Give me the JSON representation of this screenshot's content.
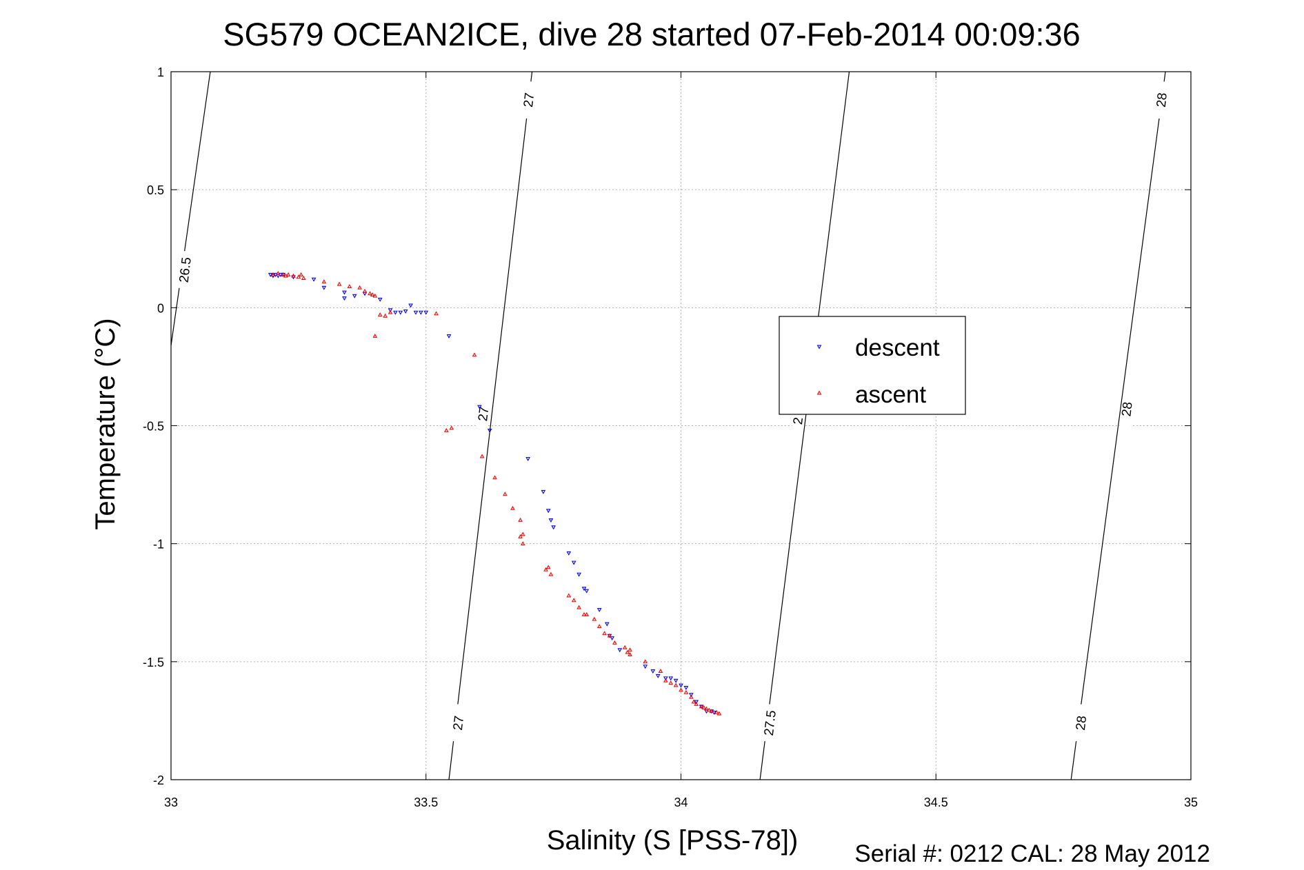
{
  "chart_data": {
    "type": "scatter",
    "title": "SG579 OCEAN2ICE, dive 28 started 07-Feb-2014 00:09:36",
    "xlabel": "Salinity (S [PSS-78])",
    "ylabel": "Temperature (°C)",
    "xlim": [
      33,
      35
    ],
    "ylim": [
      -2,
      1
    ],
    "xticks": [
      "33",
      "33.5",
      "34",
      "34.5",
      "35"
    ],
    "yticks": [
      "1",
      "0.5",
      "0",
      "-0.5",
      "-1",
      "-1.5",
      "-2"
    ],
    "grid": true,
    "legend_position": "center-right",
    "footer": "Serial #: 0212  CAL: 28 May 2012",
    "isopycnals": [
      {
        "label": "26.5",
        "points": [
          [
            33.0,
            -0.16
          ],
          [
            33.077,
            1.0
          ]
        ],
        "label_at": [
          33.028,
          0.16
        ]
      },
      {
        "label": "27",
        "points": [
          [
            33.545,
            -2.0
          ],
          [
            33.708,
            1.0
          ]
        ],
        "label_at": [
          33.564,
          -1.76
        ]
      },
      {
        "label": "27",
        "label_at": [
          33.613,
          -0.45
        ]
      },
      {
        "label": "27",
        "label_at": [
          33.702,
          0.88
        ]
      },
      {
        "label": "27.5",
        "points": [
          [
            34.155,
            -2.0
          ],
          [
            34.33,
            1.0
          ]
        ],
        "label_at": [
          34.175,
          -1.76
        ]
      },
      {
        "label": "2",
        "label_at": [
          34.23,
          -0.48
        ]
      },
      {
        "label": "28",
        "points": [
          [
            34.765,
            -2.0
          ],
          [
            34.95,
            1.0
          ]
        ],
        "label_at": [
          34.785,
          -1.76
        ]
      },
      {
        "label": "28",
        "label_at": [
          34.875,
          -0.43
        ]
      },
      {
        "label": "28",
        "label_at": [
          34.943,
          0.88
        ]
      }
    ],
    "series": [
      {
        "name": "descent",
        "color": "#0000ff",
        "marker": "triangle-down",
        "points": [
          [
            33.195,
            0.14
          ],
          [
            33.2,
            0.135
          ],
          [
            33.205,
            0.14
          ],
          [
            33.21,
            0.135
          ],
          [
            33.215,
            0.14
          ],
          [
            33.22,
            0.14
          ],
          [
            33.24,
            0.13
          ],
          [
            33.28,
            0.12
          ],
          [
            33.3,
            0.085
          ],
          [
            33.34,
            0.065
          ],
          [
            33.34,
            0.04
          ],
          [
            33.36,
            0.05
          ],
          [
            33.38,
            0.06
          ],
          [
            33.41,
            0.035
          ],
          [
            33.43,
            -0.01
          ],
          [
            33.44,
            -0.02
          ],
          [
            33.45,
            -0.02
          ],
          [
            33.46,
            -0.015
          ],
          [
            33.47,
            0.01
          ],
          [
            33.48,
            -0.02
          ],
          [
            33.49,
            -0.02
          ],
          [
            33.5,
            -0.02
          ],
          [
            33.545,
            -0.12
          ],
          [
            33.605,
            -0.42
          ],
          [
            33.625,
            -0.52
          ],
          [
            33.7,
            -0.64
          ],
          [
            33.73,
            -0.78
          ],
          [
            33.74,
            -0.86
          ],
          [
            33.745,
            -0.9
          ],
          [
            33.75,
            -0.93
          ],
          [
            33.78,
            -1.04
          ],
          [
            33.79,
            -1.08
          ],
          [
            33.8,
            -1.13
          ],
          [
            33.81,
            -1.19
          ],
          [
            33.815,
            -1.2
          ],
          [
            33.84,
            -1.28
          ],
          [
            33.855,
            -1.34
          ],
          [
            33.86,
            -1.39
          ],
          [
            33.865,
            -1.4
          ],
          [
            33.88,
            -1.45
          ],
          [
            33.93,
            -1.52
          ],
          [
            33.945,
            -1.54
          ],
          [
            33.955,
            -1.56
          ],
          [
            33.97,
            -1.57
          ],
          [
            33.98,
            -1.57
          ],
          [
            33.99,
            -1.58
          ],
          [
            34.0,
            -1.6
          ],
          [
            34.01,
            -1.61
          ],
          [
            34.02,
            -1.64
          ],
          [
            34.03,
            -1.67
          ],
          [
            34.04,
            -1.69
          ],
          [
            34.05,
            -1.71
          ],
          [
            34.06,
            -1.71
          ],
          [
            34.065,
            -1.715
          ]
        ]
      },
      {
        "name": "ascent",
        "color": "#ff0000",
        "marker": "triangle-up",
        "points": [
          [
            33.2,
            0.14
          ],
          [
            33.21,
            0.145
          ],
          [
            33.22,
            0.14
          ],
          [
            33.225,
            0.135
          ],
          [
            33.23,
            0.14
          ],
          [
            33.24,
            0.135
          ],
          [
            33.25,
            0.13
          ],
          [
            33.255,
            0.14
          ],
          [
            33.26,
            0.125
          ],
          [
            33.3,
            0.11
          ],
          [
            33.33,
            0.1
          ],
          [
            33.35,
            0.09
          ],
          [
            33.37,
            0.085
          ],
          [
            33.38,
            0.07
          ],
          [
            33.39,
            0.06
          ],
          [
            33.395,
            0.055
          ],
          [
            33.4,
            0.05
          ],
          [
            33.41,
            -0.03
          ],
          [
            33.42,
            -0.035
          ],
          [
            33.43,
            -0.02
          ],
          [
            33.4,
            -0.12
          ],
          [
            33.52,
            -0.025
          ],
          [
            33.595,
            -0.2
          ],
          [
            33.54,
            -0.52
          ],
          [
            33.55,
            -0.51
          ],
          [
            33.61,
            -0.63
          ],
          [
            33.635,
            -0.72
          ],
          [
            33.655,
            -0.79
          ],
          [
            33.67,
            -0.85
          ],
          [
            33.685,
            -0.9
          ],
          [
            33.69,
            -0.96
          ],
          [
            33.685,
            -0.97
          ],
          [
            33.69,
            -1.0
          ],
          [
            33.735,
            -1.11
          ],
          [
            33.74,
            -1.1
          ],
          [
            33.745,
            -1.13
          ],
          [
            33.78,
            -1.22
          ],
          [
            33.79,
            -1.24
          ],
          [
            33.8,
            -1.27
          ],
          [
            33.81,
            -1.3
          ],
          [
            33.815,
            -1.3
          ],
          [
            33.83,
            -1.32
          ],
          [
            33.84,
            -1.35
          ],
          [
            33.85,
            -1.38
          ],
          [
            33.86,
            -1.39
          ],
          [
            33.87,
            -1.42
          ],
          [
            33.89,
            -1.44
          ],
          [
            33.9,
            -1.45
          ],
          [
            33.895,
            -1.46
          ],
          [
            33.9,
            -1.47
          ],
          [
            33.93,
            -1.5
          ],
          [
            33.96,
            -1.54
          ],
          [
            33.97,
            -1.58
          ],
          [
            33.98,
            -1.59
          ],
          [
            33.99,
            -1.6
          ],
          [
            34.0,
            -1.62
          ],
          [
            34.01,
            -1.63
          ],
          [
            34.02,
            -1.65
          ],
          [
            34.025,
            -1.67
          ],
          [
            34.03,
            -1.68
          ],
          [
            34.04,
            -1.69
          ],
          [
            34.045,
            -1.695
          ],
          [
            34.05,
            -1.7
          ],
          [
            34.055,
            -1.705
          ],
          [
            34.06,
            -1.71
          ],
          [
            34.07,
            -1.715
          ],
          [
            34.075,
            -1.72
          ]
        ]
      }
    ]
  }
}
